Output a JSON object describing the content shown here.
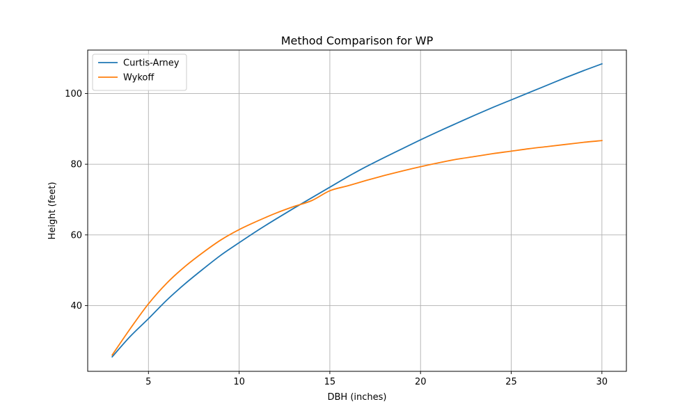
{
  "chart_data": {
    "type": "line",
    "title": "Method Comparison for WP",
    "xlabel": "DBH (inches)",
    "ylabel": "Height (feet)",
    "xlim": [
      1.65,
      31.35
    ],
    "ylim": [
      21.4,
      112.3
    ],
    "xticks": [
      5,
      10,
      15,
      20,
      25,
      30
    ],
    "yticks": [
      40,
      60,
      80,
      100
    ],
    "grid": true,
    "legend_position": "upper left",
    "x": [
      3,
      4,
      5,
      6,
      7,
      8,
      9,
      10,
      11,
      12,
      13,
      14,
      15,
      16,
      17,
      18,
      19,
      20,
      21,
      22,
      23,
      24,
      25,
      26,
      27,
      28,
      29,
      30
    ],
    "series": [
      {
        "name": "Curtis-Arney",
        "color": "#1f77b4",
        "values": [
          25.5,
          31.3,
          36.3,
          41.5,
          46.1,
          50.3,
          54.3,
          57.8,
          61.2,
          64.4,
          67.5,
          70.5,
          73.5,
          76.5,
          79.3,
          81.9,
          84.4,
          86.9,
          89.3,
          91.6,
          93.9,
          96.1,
          98.2,
          100.3,
          102.4,
          104.5,
          106.5,
          108.4
        ]
      },
      {
        "name": "Wykoff",
        "color": "#ff7f0e",
        "values": [
          26.0,
          33.5,
          40.5,
          46.3,
          51.0,
          55.0,
          58.6,
          61.5,
          63.9,
          66.1,
          68.0,
          69.7,
          72.5,
          73.9,
          75.4,
          76.8,
          78.1,
          79.3,
          80.4,
          81.4,
          82.2,
          83.0,
          83.7,
          84.4,
          85.0,
          85.6,
          86.2,
          86.7
        ]
      }
    ]
  }
}
